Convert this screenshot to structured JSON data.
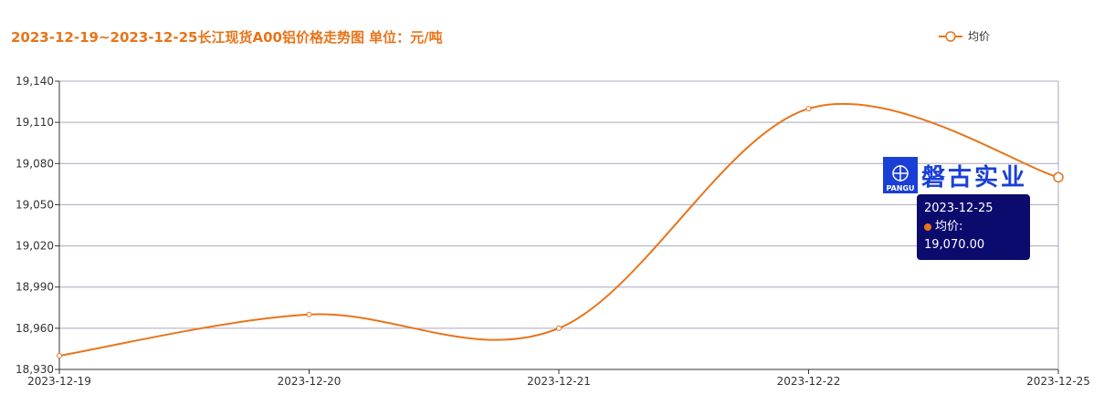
{
  "title": "2023-12-19~2023-12-25长江现货A00铝价格走势图 单位：元/吨",
  "colors": {
    "line": "#e8741a",
    "axis": "#333333",
    "grid": "#a8a8c0",
    "tooltip_bg": "#0b0b6e",
    "watermark": "#1a3fd6"
  },
  "watermark": {
    "logo_label": "PANGU",
    "text": "磐古实业"
  },
  "tooltip": {
    "date": "2023-12-25",
    "series_label": "均价: 19,070.00"
  },
  "chart_data": {
    "type": "line",
    "title": "2023-12-19~2023-12-25长江现货A00铝价格走势图 单位：元/吨",
    "categories": [
      "2023-12-19",
      "2023-12-20",
      "2023-12-21",
      "2023-12-22",
      "2023-12-25"
    ],
    "series": [
      {
        "name": "均价",
        "values": [
          18940,
          18970,
          18960,
          19120,
          19070
        ]
      }
    ],
    "y_ticks": [
      "18,930",
      "18,960",
      "18,990",
      "19,020",
      "19,050",
      "19,080",
      "19,110",
      "19,140"
    ],
    "ylim": [
      18930,
      19140
    ],
    "grid": true,
    "legend": "top-right",
    "smooth": true
  }
}
